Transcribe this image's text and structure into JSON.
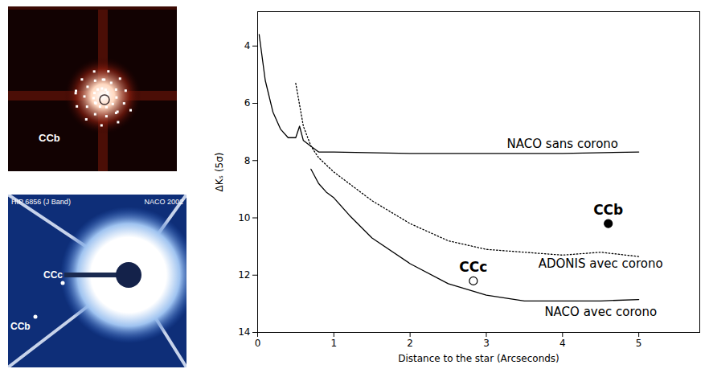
{
  "chart_data": {
    "type": "line",
    "x_label": "Distance to the star (Arcseconds)",
    "y_label": "ΔKₛ (5σ)",
    "xlim": [
      0,
      5.8
    ],
    "ylim": [
      14,
      2.8
    ],
    "xticks": [
      0,
      1,
      2,
      3,
      4,
      5
    ],
    "yticks": [
      4,
      6,
      8,
      10,
      12,
      14
    ],
    "series": [
      {
        "name": "NACO sans corono",
        "color": "#000000",
        "line_style": "solid",
        "x": [
          0.02,
          0.1,
          0.2,
          0.3,
          0.4,
          0.5,
          0.55,
          0.6,
          0.7,
          0.8,
          1,
          2,
          3,
          4,
          5
        ],
        "values": [
          3.6,
          5.2,
          6.3,
          6.9,
          7.2,
          7.2,
          6.8,
          7.3,
          7.5,
          7.7,
          7.7,
          7.75,
          7.75,
          7.75,
          7.7
        ]
      },
      {
        "name": "ADONIS avec corono",
        "color": "#000000",
        "line_style": "dotted",
        "x": [
          0.5,
          0.6,
          0.7,
          0.8,
          1,
          1.5,
          2,
          2.5,
          3,
          3.5,
          4,
          4.5,
          5
        ],
        "values": [
          5.3,
          6.8,
          7.5,
          7.9,
          8.4,
          9.4,
          10.2,
          10.8,
          11.1,
          11.2,
          11.3,
          11.2,
          11.35
        ]
      },
      {
        "name": "NACO avec corono",
        "color": "#000000",
        "line_style": "solid",
        "x": [
          0.7,
          0.8,
          0.9,
          1,
          1.2,
          1.5,
          2,
          2.5,
          3,
          3.5,
          4,
          4.5,
          5
        ],
        "values": [
          8.3,
          8.8,
          9.1,
          9.3,
          9.9,
          10.7,
          11.6,
          12.3,
          12.7,
          12.9,
          12.9,
          12.9,
          12.85
        ]
      }
    ],
    "points": [
      {
        "name": "CCb",
        "x": 4.6,
        "y": 10.2,
        "color": "#000000",
        "marker": "filled"
      },
      {
        "name": "CCc",
        "x": 2.83,
        "y": 12.2,
        "color": "#000000",
        "marker": "open"
      }
    ]
  },
  "images": [
    {
      "labels": [
        "CCb"
      ]
    },
    {
      "title": "HIP 6856 (J Band)",
      "caption": "NACO 2002",
      "labels": [
        "CCc",
        "CCb"
      ]
    }
  ]
}
